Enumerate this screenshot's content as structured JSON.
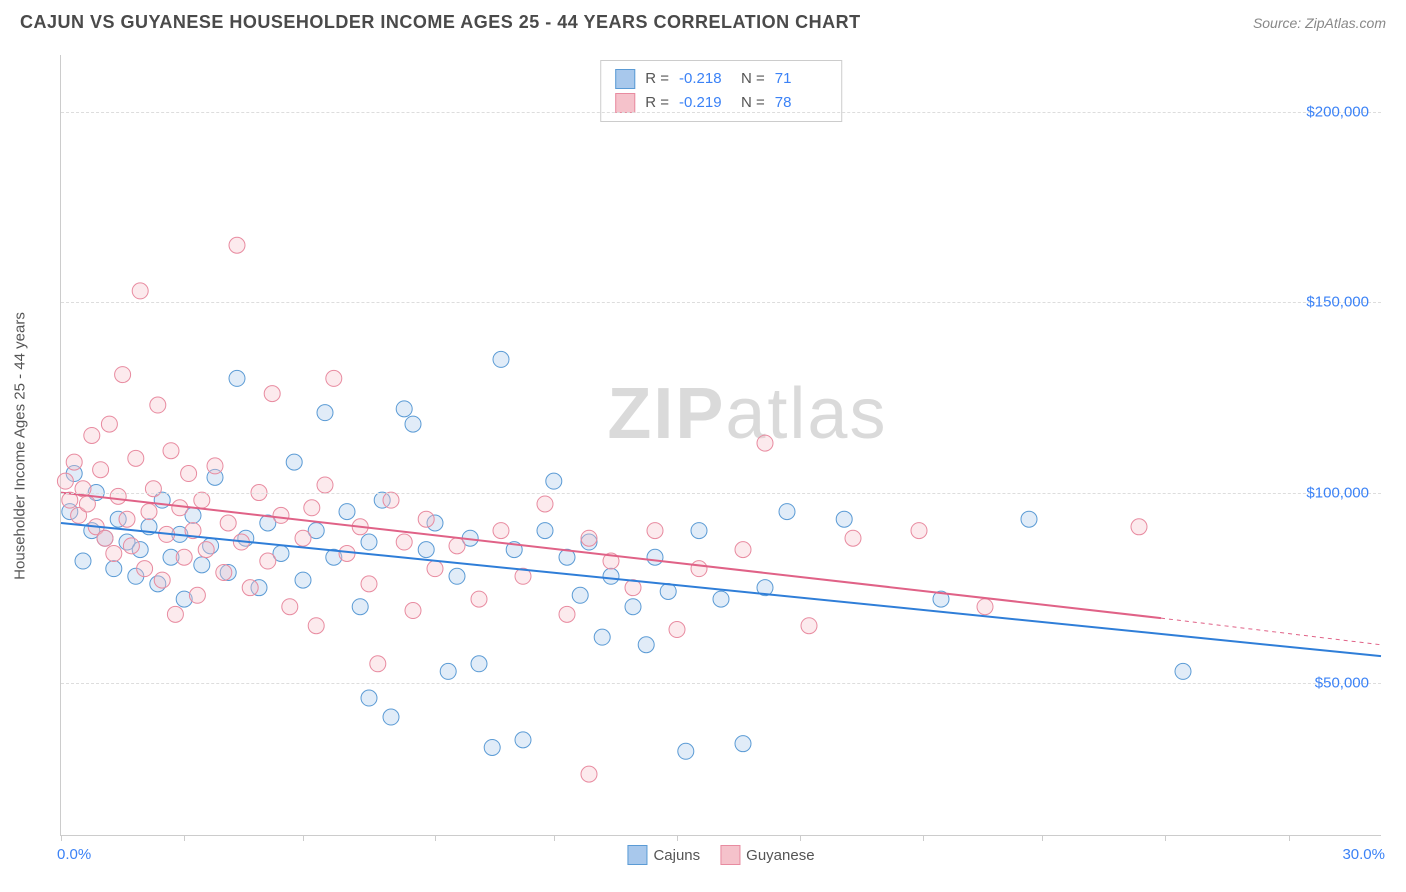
{
  "header": {
    "title": "CAJUN VS GUYANESE HOUSEHOLDER INCOME AGES 25 - 44 YEARS CORRELATION CHART",
    "source": "Source: ZipAtlas.com"
  },
  "watermark": {
    "part1": "ZIP",
    "part2": "atlas"
  },
  "chart": {
    "type": "scatter",
    "background_color": "#ffffff",
    "grid_color": "#dddddd",
    "border_color": "#cccccc",
    "ylabel": "Householder Income Ages 25 - 44 years",
    "ylabel_fontsize": 15,
    "label_color": "#555555",
    "tick_color": "#3b82f6",
    "xlim": [
      0,
      30
    ],
    "ylim": [
      10000,
      215000
    ],
    "xtick_start_label": "0.0%",
    "xtick_end_label": "30.0%",
    "xtick_positions": [
      0,
      2.8,
      5.5,
      8.5,
      11.2,
      14.0,
      16.8,
      19.6,
      22.3,
      25.1,
      27.9
    ],
    "yticks": [
      {
        "v": 50000,
        "label": "$50,000"
      },
      {
        "v": 100000,
        "label": "$100,000"
      },
      {
        "v": 150000,
        "label": "$150,000"
      },
      {
        "v": 200000,
        "label": "$200,000"
      }
    ],
    "marker_radius": 8,
    "marker_opacity": 0.35,
    "line_width": 2,
    "series": [
      {
        "name": "Cajuns",
        "fill_color": "#a8c8ec",
        "stroke_color": "#5b9bd5",
        "line_color": "#2f7ed8",
        "R": "-0.218",
        "N": "71",
        "trend": {
          "x1": 0,
          "y1": 92000,
          "x2": 30,
          "y2": 57000
        },
        "points": [
          [
            0.2,
            95000
          ],
          [
            0.3,
            105000
          ],
          [
            0.5,
            82000
          ],
          [
            0.7,
            90000
          ],
          [
            0.8,
            100000
          ],
          [
            1.0,
            88000
          ],
          [
            1.2,
            80000
          ],
          [
            1.3,
            93000
          ],
          [
            1.5,
            87000
          ],
          [
            1.7,
            78000
          ],
          [
            1.8,
            85000
          ],
          [
            2.0,
            91000
          ],
          [
            2.2,
            76000
          ],
          [
            2.3,
            98000
          ],
          [
            2.5,
            83000
          ],
          [
            2.7,
            89000
          ],
          [
            2.8,
            72000
          ],
          [
            3.0,
            94000
          ],
          [
            3.2,
            81000
          ],
          [
            3.4,
            86000
          ],
          [
            3.5,
            104000
          ],
          [
            3.8,
            79000
          ],
          [
            4.0,
            130000
          ],
          [
            4.2,
            88000
          ],
          [
            4.5,
            75000
          ],
          [
            4.7,
            92000
          ],
          [
            5.0,
            84000
          ],
          [
            5.3,
            108000
          ],
          [
            5.5,
            77000
          ],
          [
            5.8,
            90000
          ],
          [
            6.0,
            121000
          ],
          [
            6.2,
            83000
          ],
          [
            6.5,
            95000
          ],
          [
            6.8,
            70000
          ],
          [
            7.0,
            87000
          ],
          [
            7.3,
            98000
          ],
          [
            7.5,
            41000
          ],
          [
            7.8,
            122000
          ],
          [
            8.0,
            118000
          ],
          [
            8.3,
            85000
          ],
          [
            8.5,
            92000
          ],
          [
            8.8,
            53000
          ],
          [
            9.0,
            78000
          ],
          [
            9.3,
            88000
          ],
          [
            9.5,
            55000
          ],
          [
            9.8,
            33000
          ],
          [
            10.0,
            135000
          ],
          [
            10.3,
            85000
          ],
          [
            10.5,
            35000
          ],
          [
            11.0,
            90000
          ],
          [
            11.2,
            103000
          ],
          [
            11.5,
            83000
          ],
          [
            11.8,
            73000
          ],
          [
            12.0,
            87000
          ],
          [
            12.3,
            62000
          ],
          [
            12.5,
            78000
          ],
          [
            13.0,
            70000
          ],
          [
            13.3,
            60000
          ],
          [
            13.5,
            83000
          ],
          [
            13.8,
            74000
          ],
          [
            14.2,
            32000
          ],
          [
            14.5,
            90000
          ],
          [
            15.0,
            72000
          ],
          [
            15.5,
            34000
          ],
          [
            16.0,
            75000
          ],
          [
            16.5,
            95000
          ],
          [
            17.8,
            93000
          ],
          [
            20.0,
            72000
          ],
          [
            22.0,
            93000
          ],
          [
            25.5,
            53000
          ],
          [
            7.0,
            46000
          ]
        ]
      },
      {
        "name": "Guyanese",
        "fill_color": "#f5c2cb",
        "stroke_color": "#e88ba0",
        "line_color": "#e06287",
        "R": "-0.219",
        "N": "78",
        "trend": {
          "x1": 0,
          "y1": 100000,
          "x2": 25,
          "y2": 67000,
          "x_ext": 30,
          "y_ext": 60000
        },
        "points": [
          [
            0.1,
            103000
          ],
          [
            0.2,
            98000
          ],
          [
            0.3,
            108000
          ],
          [
            0.4,
            94000
          ],
          [
            0.5,
            101000
          ],
          [
            0.6,
            97000
          ],
          [
            0.7,
            115000
          ],
          [
            0.8,
            91000
          ],
          [
            0.9,
            106000
          ],
          [
            1.0,
            88000
          ],
          [
            1.1,
            118000
          ],
          [
            1.2,
            84000
          ],
          [
            1.3,
            99000
          ],
          [
            1.4,
            131000
          ],
          [
            1.5,
            93000
          ],
          [
            1.6,
            86000
          ],
          [
            1.7,
            109000
          ],
          [
            1.8,
            153000
          ],
          [
            1.9,
            80000
          ],
          [
            2.0,
            95000
          ],
          [
            2.1,
            101000
          ],
          [
            2.2,
            123000
          ],
          [
            2.3,
            77000
          ],
          [
            2.4,
            89000
          ],
          [
            2.5,
            111000
          ],
          [
            2.6,
            68000
          ],
          [
            2.7,
            96000
          ],
          [
            2.8,
            83000
          ],
          [
            2.9,
            105000
          ],
          [
            3.0,
            90000
          ],
          [
            3.1,
            73000
          ],
          [
            3.2,
            98000
          ],
          [
            3.3,
            85000
          ],
          [
            3.5,
            107000
          ],
          [
            3.7,
            79000
          ],
          [
            3.8,
            92000
          ],
          [
            4.0,
            165000
          ],
          [
            4.1,
            87000
          ],
          [
            4.3,
            75000
          ],
          [
            4.5,
            100000
          ],
          [
            4.7,
            82000
          ],
          [
            4.8,
            126000
          ],
          [
            5.0,
            94000
          ],
          [
            5.2,
            70000
          ],
          [
            5.5,
            88000
          ],
          [
            5.7,
            96000
          ],
          [
            5.8,
            65000
          ],
          [
            6.0,
            102000
          ],
          [
            6.2,
            130000
          ],
          [
            6.5,
            84000
          ],
          [
            6.8,
            91000
          ],
          [
            7.0,
            76000
          ],
          [
            7.2,
            55000
          ],
          [
            7.5,
            98000
          ],
          [
            7.8,
            87000
          ],
          [
            8.0,
            69000
          ],
          [
            8.3,
            93000
          ],
          [
            8.5,
            80000
          ],
          [
            9.0,
            86000
          ],
          [
            9.5,
            72000
          ],
          [
            10.0,
            90000
          ],
          [
            10.5,
            78000
          ],
          [
            11.0,
            97000
          ],
          [
            11.5,
            68000
          ],
          [
            12.0,
            26000
          ],
          [
            12.0,
            88000
          ],
          [
            12.5,
            82000
          ],
          [
            13.0,
            75000
          ],
          [
            13.5,
            90000
          ],
          [
            14.0,
            64000
          ],
          [
            14.5,
            80000
          ],
          [
            15.5,
            85000
          ],
          [
            16.0,
            113000
          ],
          [
            17.0,
            65000
          ],
          [
            18.0,
            88000
          ],
          [
            19.5,
            90000
          ],
          [
            21.0,
            70000
          ],
          [
            24.5,
            91000
          ]
        ]
      }
    ],
    "legend": {
      "items": [
        "Cajuns",
        "Guyanese"
      ]
    }
  }
}
